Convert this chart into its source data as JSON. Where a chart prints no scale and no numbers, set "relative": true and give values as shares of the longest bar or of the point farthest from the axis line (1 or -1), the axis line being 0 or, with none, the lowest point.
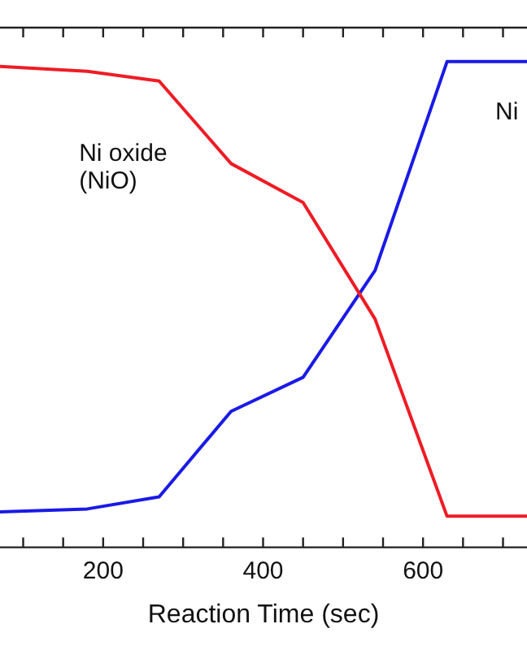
{
  "chart_data": {
    "type": "line",
    "relative": true,
    "xlabel": "Reaction Time (sec)",
    "xlim": [
      71,
      730
    ],
    "xticks": [
      {
        "value": 100,
        "label": null
      },
      {
        "value": 150,
        "label": null
      },
      200,
      {
        "value": 250,
        "label": null
      },
      {
        "value": 300,
        "label": null
      },
      {
        "value": 350,
        "label": null
      },
      400,
      {
        "value": 450,
        "label": null
      },
      {
        "value": 500,
        "label": null
      },
      {
        "value": 550,
        "label": null
      },
      600,
      {
        "value": 650,
        "label": null
      },
      {
        "value": 700,
        "label": null
      }
    ],
    "x": [
      71,
      180,
      270,
      360,
      450,
      540,
      630,
      730
    ],
    "series": [
      {
        "name": "Ni oxide (NiO)",
        "color": "#ee1c25",
        "values": [
          0.99,
          0.98,
          0.96,
          0.79,
          0.71,
          0.47,
          0.064,
          0.064
        ]
      },
      {
        "name": "Ni",
        "color": "#1a1ae6",
        "values": [
          0.073,
          0.079,
          0.104,
          0.28,
          0.35,
          0.57,
          1,
          1
        ]
      }
    ],
    "grid": false,
    "legend": false,
    "marker": "none",
    "line_style": "solid",
    "tick_labels": "x"
  }
}
